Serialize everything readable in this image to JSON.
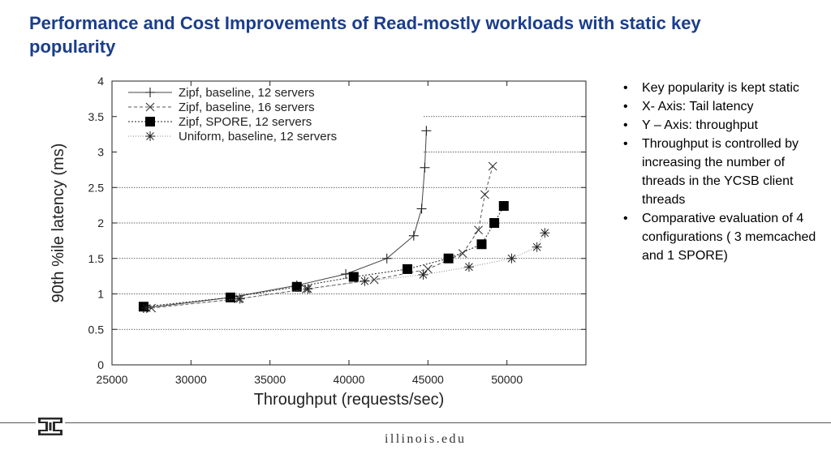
{
  "slide": {
    "title": "Performance and Cost Improvements of Read-mostly workloads with static key popularity",
    "bullets": [
      "Key popularity is kept static",
      "X- Axis: Tail latency",
      "Y – Axis: throughput",
      "Throughput is controlled by increasing the number of threads in the YCSB client threads",
      "Comparative evaluation of 4 configurations ( 3 memcached and 1 SPORE)"
    ],
    "footer_url": "illinois.edu",
    "logo_icon": "illinois-block-i-logo-icon",
    "title_color": "#1b3e8a"
  },
  "chart_data": {
    "type": "line",
    "xlabel": "Throughput (requests/sec)",
    "ylabel": "90th %ile latency (ms)",
    "xlim": [
      25000,
      55000
    ],
    "ylim": [
      0,
      4
    ],
    "xticks": [
      25000,
      30000,
      35000,
      40000,
      45000,
      50000
    ],
    "yticks": [
      0,
      0.5,
      1,
      1.5,
      2,
      2.5,
      3,
      3.5,
      4
    ],
    "ytick_labels": [
      "0",
      "0.5",
      "1",
      "1.5",
      "2",
      "2.5",
      "3",
      "3.5",
      "4"
    ],
    "grid": "horizontal dotted",
    "legend_position": "top-left",
    "series": [
      {
        "name": "Zipf, baseline, 12 servers",
        "marker": "plus",
        "line_style": "solid",
        "x": [
          27000,
          32500,
          36700,
          39800,
          42400,
          44100,
          44600,
          44800,
          44900
        ],
        "y": [
          0.8,
          0.95,
          1.12,
          1.28,
          1.5,
          1.82,
          2.2,
          2.78,
          3.3
        ]
      },
      {
        "name": "Zipf, baseline, 16 servers",
        "marker": "x",
        "line_style": "dashed",
        "x": [
          27500,
          33000,
          37300,
          41600,
          45000,
          47200,
          48200,
          48600,
          49100
        ],
        "y": [
          0.8,
          0.93,
          1.07,
          1.2,
          1.35,
          1.57,
          1.9,
          2.4,
          2.8
        ]
      },
      {
        "name": "Zipf, SPORE, 12 servers",
        "marker": "filled-square",
        "line_style": "dotted",
        "x": [
          27000,
          32500,
          36700,
          40300,
          43700,
          46300,
          48400,
          49200,
          49800
        ],
        "y": [
          0.82,
          0.95,
          1.1,
          1.24,
          1.35,
          1.5,
          1.7,
          2.0,
          2.24
        ]
      },
      {
        "name": "Uniform, baseline, 12 servers",
        "marker": "asterisk",
        "line_style": "dotted-light",
        "x": [
          27200,
          33100,
          37400,
          41000,
          44700,
          47600,
          50300,
          51900,
          52400
        ],
        "y": [
          0.8,
          0.93,
          1.07,
          1.18,
          1.27,
          1.38,
          1.5,
          1.66,
          1.86
        ]
      }
    ]
  }
}
